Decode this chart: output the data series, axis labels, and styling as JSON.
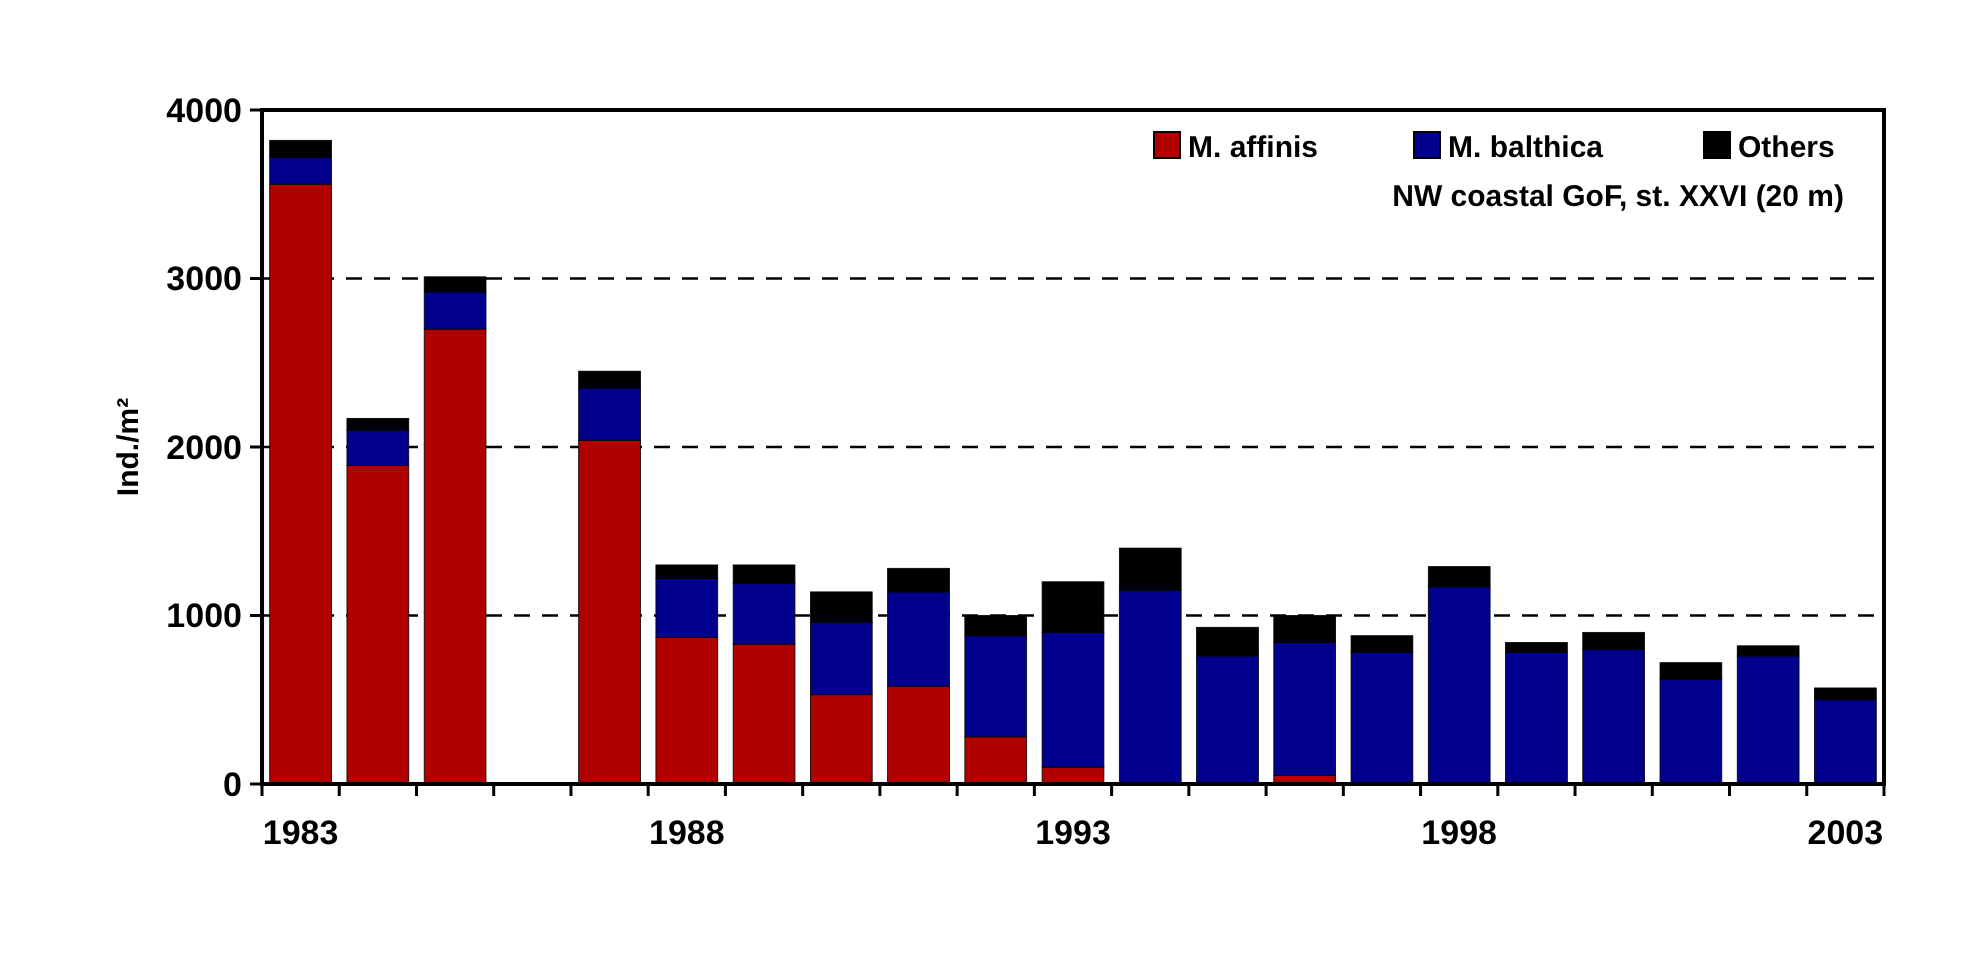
{
  "chart_data": {
    "type": "bar",
    "stacked": true,
    "ylabel": "Ind./m²",
    "annotations": [
      "NW coastal GoF, st. XXVI (20 m)"
    ],
    "categories": [
      "1983",
      null,
      null,
      null,
      null,
      "1988",
      null,
      null,
      null,
      null,
      "1993",
      null,
      null,
      null,
      null,
      "1998",
      null,
      null,
      null,
      null,
      "2003"
    ],
    "series": [
      {
        "name": "M. affinis",
        "color": "#b00000",
        "values": [
          3560,
          1890,
          2700,
          null,
          2040,
          870,
          830,
          530,
          580,
          280,
          100,
          0,
          0,
          50,
          0,
          0,
          0,
          0,
          0,
          0,
          0
        ]
      },
      {
        "name": "M. balthica",
        "color": "#00008c",
        "values": [
          160,
          210,
          220,
          null,
          310,
          350,
          360,
          430,
          560,
          600,
          800,
          1150,
          760,
          790,
          780,
          1170,
          780,
          800,
          620,
          760,
          500
        ]
      },
      {
        "name": "Others",
        "color": "#000000",
        "values": [
          100,
          70,
          90,
          null,
          100,
          80,
          110,
          180,
          140,
          120,
          300,
          250,
          170,
          160,
          100,
          120,
          60,
          100,
          100,
          60,
          70
        ]
      }
    ],
    "ylim": [
      0,
      4000
    ],
    "yticks": [
      0,
      1000,
      2000,
      3000,
      4000
    ],
    "grid": "y",
    "legend": "top right"
  }
}
